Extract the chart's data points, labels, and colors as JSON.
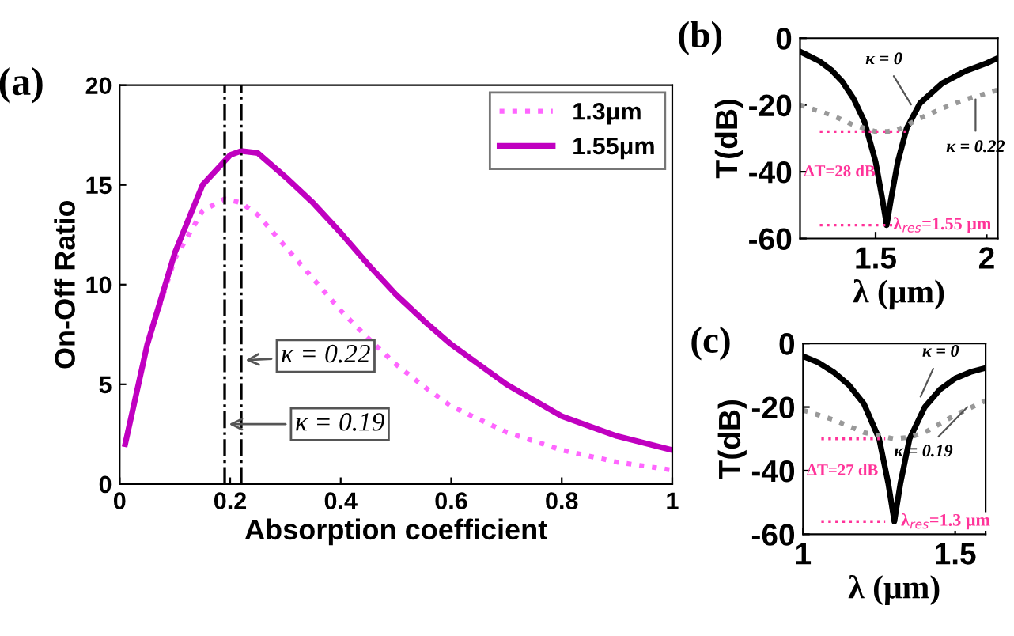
{
  "chart_data": [
    {
      "type": "line",
      "title": "(a)",
      "xlabel": "Absorption coefficient",
      "ylabel": "On-Off Ratio",
      "xlim": [
        0,
        1
      ],
      "ylim": [
        0,
        20
      ],
      "xticks": [
        0,
        0.2,
        0.4,
        0.6,
        0.8,
        1
      ],
      "yticks": [
        0,
        5,
        10,
        15,
        20
      ],
      "grid": false,
      "legend": "top right",
      "series": [
        {
          "name": "1.3μm",
          "color": "#ff66ff",
          "line_style": "dotted",
          "x": [
            0.01,
            0.05,
            0.1,
            0.15,
            0.19,
            0.22,
            0.25,
            0.3,
            0.35,
            0.4,
            0.45,
            0.5,
            0.55,
            0.6,
            0.7,
            0.8,
            0.9,
            1.0
          ],
          "values": [
            2,
            7,
            11.3,
            13.7,
            14.3,
            14.1,
            13.5,
            11.9,
            10.3,
            8.7,
            7.3,
            6.0,
            4.9,
            3.9,
            2.6,
            1.7,
            1.1,
            0.7
          ]
        },
        {
          "name": "1.55μm",
          "color": "#c000c0",
          "line_style": "solid",
          "x": [
            0.01,
            0.05,
            0.1,
            0.15,
            0.2,
            0.22,
            0.25,
            0.3,
            0.35,
            0.4,
            0.45,
            0.5,
            0.55,
            0.6,
            0.7,
            0.8,
            0.9,
            1.0
          ],
          "values": [
            2,
            7,
            11.6,
            15,
            16.5,
            16.7,
            16.6,
            15.4,
            14.1,
            12.6,
            11,
            9.5,
            8.2,
            7.0,
            5.0,
            3.4,
            2.4,
            1.7
          ]
        }
      ],
      "ref_lines": [
        {
          "axis": "x",
          "value": 0.19,
          "color": "#000000",
          "line_style": "dashdot"
        },
        {
          "axis": "x",
          "value": 0.22,
          "color": "#000000",
          "line_style": "dashdot"
        }
      ],
      "annotations": [
        {
          "text": "κ = 0.22",
          "x": 0.22,
          "y": 6.2
        },
        {
          "text": "κ = 0.19",
          "x": 0.19,
          "y": 3
        }
      ]
    },
    {
      "type": "line",
      "title": "(b)",
      "xlabel": "λ (μm)",
      "ylabel": "T(dB)",
      "xlim": [
        1.16,
        2.05
      ],
      "ylim": [
        -60,
        0
      ],
      "xticks": [
        1.5,
        2
      ],
      "yticks": [
        -60,
        -40,
        -20,
        0
      ],
      "grid": false,
      "series": [
        {
          "color": "#000000",
          "line_style": "solid",
          "x": [
            1.16,
            1.25,
            1.3,
            1.35,
            1.4,
            1.45,
            1.5,
            1.53,
            1.55,
            1.57,
            1.6,
            1.64,
            1.7,
            1.8,
            1.9,
            2.0,
            2.05
          ],
          "values": [
            -4,
            -7,
            -9.5,
            -13,
            -18,
            -25,
            -37,
            -48,
            -56,
            -48,
            -37,
            -27,
            -19.5,
            -13.5,
            -10,
            -7.5,
            -6
          ]
        },
        {
          "color": "#999999",
          "line_style": "dotted",
          "x": [
            1.16,
            1.3,
            1.4,
            1.5,
            1.55,
            1.6,
            1.7,
            1.8,
            1.9,
            2.05
          ],
          "values": [
            -20,
            -23,
            -26,
            -28,
            -28,
            -27.5,
            -24,
            -21,
            -18.5,
            -15.5
          ]
        }
      ],
      "ref_lines": [
        {
          "axis": "y",
          "value": -28,
          "color": "#ff3399",
          "line_style": "dotted"
        },
        {
          "axis": "y",
          "value": -56,
          "color": "#ff3399",
          "line_style": "dotted"
        }
      ],
      "annotations": [
        {
          "text": "κ = 0",
          "x": 1.67,
          "y": -21
        },
        {
          "text": "κ = 0.22",
          "x": 1.95,
          "y": -17
        },
        "ΔT=28 dB",
        {
          "text": "λ$_{res}$=1.55 μm",
          "x": 1.55,
          "y": -56
        }
      ]
    },
    {
      "type": "line",
      "title": "(c)",
      "xlabel": "λ (μm)",
      "ylabel": "T(dB)",
      "xlim": [
        1,
        1.6
      ],
      "ylim": [
        -60,
        0
      ],
      "xticks": [
        1,
        1.5
      ],
      "yticks": [
        -60,
        -40,
        -20,
        0
      ],
      "grid": false,
      "series": [
        {
          "color": "#000000",
          "line_style": "solid",
          "x": [
            1.0,
            1.05,
            1.1,
            1.15,
            1.2,
            1.25,
            1.28,
            1.3,
            1.32,
            1.35,
            1.4,
            1.45,
            1.5,
            1.55,
            1.6
          ],
          "values": [
            -4,
            -6,
            -9,
            -13,
            -19,
            -30,
            -44,
            -56,
            -44,
            -30,
            -20,
            -14.5,
            -11,
            -9,
            -7.7
          ]
        },
        {
          "color": "#999999",
          "line_style": "dotted",
          "x": [
            1.0,
            1.1,
            1.2,
            1.3,
            1.35,
            1.4,
            1.5,
            1.6
          ],
          "values": [
            -21,
            -24,
            -28,
            -30,
            -29.5,
            -28,
            -22.5,
            -18
          ]
        }
      ],
      "ref_lines": [
        {
          "axis": "y",
          "value": -30,
          "color": "#ff3399",
          "line_style": "dotted"
        },
        {
          "axis": "y",
          "value": -56,
          "color": "#ff3399",
          "line_style": "dotted"
        }
      ],
      "annotations": [
        {
          "text": "κ = 0",
          "x": 1.38,
          "y": -18
        },
        {
          "text": "κ = 0.19",
          "x": 1.55,
          "y": -19
        },
        "ΔT=27 dB",
        {
          "text": "λ$_{res}$=1.3 μm",
          "x": 1.3,
          "y": -56
        }
      ]
    }
  ]
}
